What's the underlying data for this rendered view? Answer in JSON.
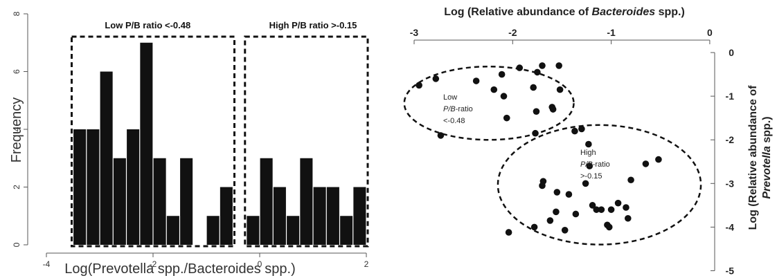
{
  "chart_data": [
    {
      "type": "bar",
      "subtype": "histogram",
      "xlabel": "Log(Prevotella spp./Bacteroides spp.)",
      "ylabel": "Frequency",
      "xticks": [
        "-4",
        "-2",
        "0",
        "2"
      ],
      "yticks": [
        "0",
        "2",
        "4",
        "6",
        "8"
      ],
      "xlim": [
        -4.2,
        2.3
      ],
      "ylim": [
        0,
        8
      ],
      "bin_width": 0.25,
      "groups": [
        {
          "label": "Low P/B ratio <-0.48",
          "range": [
            -3.5,
            -0.25
          ],
          "bins": [
            {
              "x0": -3.5,
              "x1": -3.25,
              "count": 4
            },
            {
              "x0": -3.25,
              "x1": -3.0,
              "count": 4
            },
            {
              "x0": -3.0,
              "x1": -2.75,
              "count": 6
            },
            {
              "x0": -2.75,
              "x1": -2.5,
              "count": 3
            },
            {
              "x0": -2.5,
              "x1": -2.25,
              "count": 4
            },
            {
              "x0": -2.25,
              "x1": -2.0,
              "count": 7
            },
            {
              "x0": -2.0,
              "x1": -1.75,
              "count": 3
            },
            {
              "x0": -1.75,
              "x1": -1.5,
              "count": 1
            },
            {
              "x0": -1.5,
              "x1": -1.25,
              "count": 3
            },
            {
              "x0": -1.25,
              "x1": -1.0,
              "count": 0
            },
            {
              "x0": -1.0,
              "x1": -0.75,
              "count": 1
            },
            {
              "x0": -0.75,
              "x1": -0.5,
              "count": 2
            }
          ]
        },
        {
          "label": "High P/B ratio >-0.15",
          "range": [
            -0.15,
            2.25
          ],
          "bins": [
            {
              "x0": -0.25,
              "x1": 0.0,
              "count": 1
            },
            {
              "x0": 0.0,
              "x1": 0.25,
              "count": 3
            },
            {
              "x0": 0.25,
              "x1": 0.5,
              "count": 2
            },
            {
              "x0": 0.5,
              "x1": 0.75,
              "count": 1
            },
            {
              "x0": 0.75,
              "x1": 1.0,
              "count": 3
            },
            {
              "x0": 1.0,
              "x1": 1.25,
              "count": 2
            },
            {
              "x0": 1.25,
              "x1": 1.5,
              "count": 2
            },
            {
              "x0": 1.5,
              "x1": 1.75,
              "count": 1
            },
            {
              "x0": 1.75,
              "x1": 2.0,
              "count": 2
            }
          ]
        }
      ]
    },
    {
      "type": "scatter",
      "xlabel_parts": [
        {
          "text": "Log (Relative abundance of ",
          "italic": false
        },
        {
          "text": "Bacteroides",
          "italic": true
        },
        {
          "text": " spp.)",
          "italic": false
        }
      ],
      "ylabel_line1": "Log (Relative abundance of",
      "ylabel_line2_parts": [
        {
          "text": "Prevotella",
          "italic": true
        },
        {
          "text": " spp.)",
          "italic": false
        }
      ],
      "xticks": [
        "-3",
        "-2",
        "-1",
        "0"
      ],
      "yticks": [
        "0",
        "-1",
        "-2",
        "-3",
        "-4",
        "-5"
      ],
      "xlim": [
        -3,
        0
      ],
      "ylim": [
        -5,
        0
      ],
      "groups": [
        {
          "annotation": [
            [
              {
                "text": "Low",
                "italic": false
              }
            ],
            [
              {
                "text": "P/B",
                "italic": true
              },
              {
                "text": "-ratio",
                "italic": false
              }
            ],
            [
              {
                "text": "<-0.48",
                "italic": false
              }
            ]
          ],
          "ellipse": {
            "cx": -2.24,
            "cy": -1.16,
            "rx": 0.86,
            "ry": 0.84
          },
          "points": [
            [
              -2.95,
              -0.75
            ],
            [
              -2.78,
              -0.6
            ],
            [
              -2.73,
              -1.9
            ],
            [
              -2.37,
              -0.65
            ],
            [
              -2.19,
              -0.85
            ],
            [
              -2.11,
              -0.5
            ],
            [
              -2.09,
              -1.0
            ],
            [
              -2.06,
              -1.5
            ],
            [
              -1.93,
              -0.35
            ],
            [
              -1.79,
              -0.8
            ],
            [
              -1.77,
              -1.85
            ],
            [
              -1.76,
              -1.35
            ],
            [
              -1.75,
              -0.45
            ],
            [
              -1.7,
              -0.3
            ],
            [
              -1.6,
              -1.25
            ],
            [
              -1.59,
              -1.3
            ],
            [
              -1.53,
              -0.3
            ],
            [
              -1.52,
              -0.85
            ]
          ]
        },
        {
          "annotation": [
            [
              {
                "text": "High",
                "italic": false
              }
            ],
            [
              {
                "text": "P/B",
                "italic": true
              },
              {
                "text": "-ratio",
                "italic": false
              }
            ],
            [
              {
                "text": ">-0.15",
                "italic": false
              }
            ]
          ],
          "ellipse": {
            "cx": -1.12,
            "cy": -3.03,
            "rx": 1.03,
            "ry": 1.37
          },
          "points": [
            [
              -1.37,
              -1.8
            ],
            [
              -1.3,
              -1.75
            ],
            [
              -1.23,
              -2.1
            ],
            [
              -1.22,
              -2.6
            ],
            [
              -1.69,
              -2.95
            ],
            [
              -1.7,
              -3.05
            ],
            [
              -1.55,
              -3.2
            ],
            [
              -1.43,
              -3.25
            ],
            [
              -1.26,
              -3.0
            ],
            [
              -1.19,
              -3.5
            ],
            [
              -1.15,
              -3.6
            ],
            [
              -1.1,
              -3.6
            ],
            [
              -1.0,
              -3.6
            ],
            [
              -1.36,
              -3.7
            ],
            [
              -1.56,
              -3.65
            ],
            [
              -1.62,
              -3.85
            ],
            [
              -1.78,
              -4.0
            ],
            [
              -2.04,
              -4.12
            ],
            [
              -1.47,
              -4.07
            ],
            [
              -1.04,
              -3.95
            ],
            [
              -1.02,
              -4.0
            ],
            [
              -0.93,
              -3.45
            ],
            [
              -0.85,
              -3.55
            ],
            [
              -0.83,
              -3.8
            ],
            [
              -0.8,
              -2.92
            ],
            [
              -0.65,
              -2.55
            ],
            [
              -0.52,
              -2.45
            ]
          ]
        }
      ]
    }
  ]
}
